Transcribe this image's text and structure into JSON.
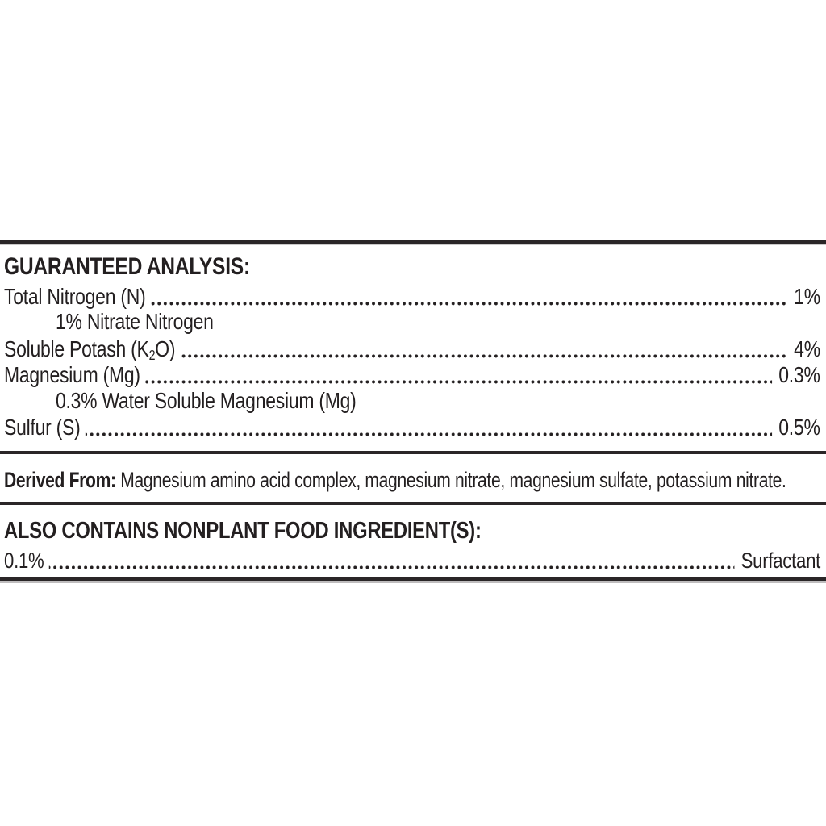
{
  "page": {
    "background_color": "#ffffff",
    "text_color": "#231f20",
    "rule_color": "#2a2627"
  },
  "guaranteed_analysis": {
    "heading": "GUARANTEED ANALYSIS:",
    "rows": [
      {
        "label": "Total Nitrogen (N)",
        "value": "1%",
        "sub_note": "1% Nitrate Nitrogen"
      },
      {
        "label_pre_sub": "Soluble Potash (K",
        "label_sub": "2",
        "label_post_sub": "O)",
        "value": "4%"
      },
      {
        "label": "Magnesium (Mg)",
        "value": "0.3%",
        "sub_note": "0.3% Water Soluble Magnesium (Mg)"
      },
      {
        "label": "Sulfur (S)",
        "value": "0.5%"
      }
    ]
  },
  "derived_from": {
    "lead": "Derived From:",
    "text": "Magnesium amino acid complex, magnesium nitrate, magnesium sulfate, potassium nitrate."
  },
  "also_contains": {
    "heading": "ALSO CONTAINS NONPLANT FOOD INGREDIENT(S):",
    "rows": [
      {
        "label": "0.1%",
        "value": "Surfactant"
      }
    ]
  }
}
